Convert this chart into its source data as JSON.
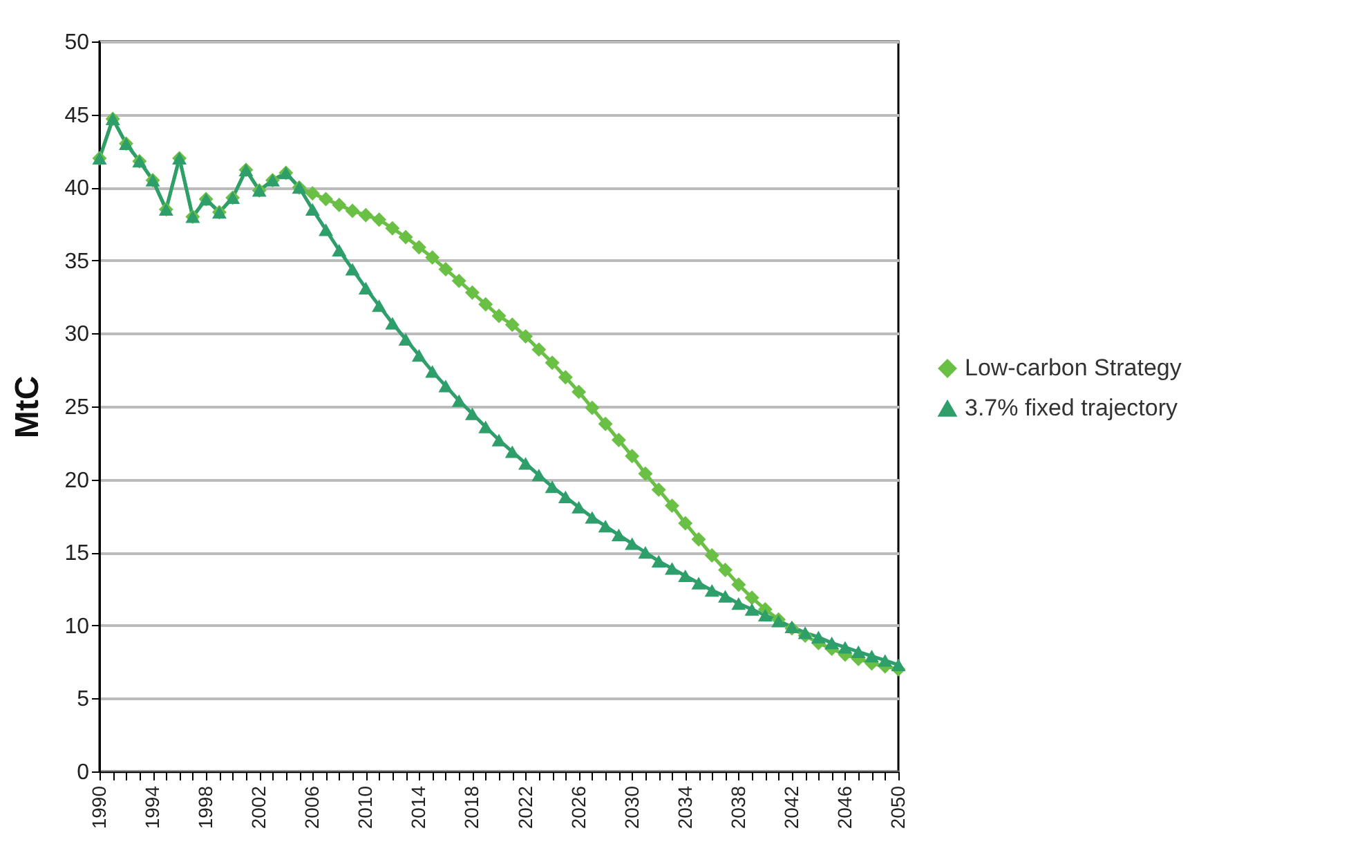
{
  "chart_data": {
    "type": "line",
    "ylabel": "MtC",
    "xlim": [
      1990,
      2050
    ],
    "ylim": [
      0,
      50
    ],
    "yticks": [
      0,
      5,
      10,
      15,
      20,
      25,
      30,
      35,
      40,
      45,
      50
    ],
    "xticks": [
      1990,
      {
        "value": 1991,
        "label": null
      },
      {
        "value": 1992,
        "label": null
      },
      {
        "value": 1993,
        "label": null
      },
      1994,
      {
        "value": 1995,
        "label": null
      },
      {
        "value": 1996,
        "label": null
      },
      {
        "value": 1997,
        "label": null
      },
      1998,
      {
        "value": 1999,
        "label": null
      },
      {
        "value": 2000,
        "label": null
      },
      {
        "value": 2001,
        "label": null
      },
      2002,
      {
        "value": 2003,
        "label": null
      },
      {
        "value": 2004,
        "label": null
      },
      {
        "value": 2005,
        "label": null
      },
      2006,
      {
        "value": 2007,
        "label": null
      },
      {
        "value": 2008,
        "label": null
      },
      {
        "value": 2009,
        "label": null
      },
      2010,
      {
        "value": 2011,
        "label": null
      },
      {
        "value": 2012,
        "label": null
      },
      {
        "value": 2013,
        "label": null
      },
      2014,
      {
        "value": 2015,
        "label": null
      },
      {
        "value": 2016,
        "label": null
      },
      {
        "value": 2017,
        "label": null
      },
      2018,
      {
        "value": 2019,
        "label": null
      },
      {
        "value": 2020,
        "label": null
      },
      {
        "value": 2021,
        "label": null
      },
      2022,
      {
        "value": 2023,
        "label": null
      },
      {
        "value": 2024,
        "label": null
      },
      {
        "value": 2025,
        "label": null
      },
      2026,
      {
        "value": 2027,
        "label": null
      },
      {
        "value": 2028,
        "label": null
      },
      {
        "value": 2029,
        "label": null
      },
      2030,
      {
        "value": 2031,
        "label": null
      },
      {
        "value": 2032,
        "label": null
      },
      {
        "value": 2033,
        "label": null
      },
      2034,
      {
        "value": 2035,
        "label": null
      },
      {
        "value": 2036,
        "label": null
      },
      {
        "value": 2037,
        "label": null
      },
      2038,
      {
        "value": 2039,
        "label": null
      },
      {
        "value": 2040,
        "label": null
      },
      {
        "value": 2041,
        "label": null
      },
      2042,
      {
        "value": 2043,
        "label": null
      },
      {
        "value": 2044,
        "label": null
      },
      {
        "value": 2045,
        "label": null
      },
      2046,
      {
        "value": 2047,
        "label": null
      },
      {
        "value": 2048,
        "label": null
      },
      {
        "value": 2049,
        "label": null
      },
      2050
    ],
    "x": [
      1990,
      1991,
      1992,
      1993,
      1994,
      1995,
      1996,
      1997,
      1998,
      1999,
      2000,
      2001,
      2002,
      2003,
      2004,
      2005,
      2006,
      2007,
      2008,
      2009,
      2010,
      2011,
      2012,
      2013,
      2014,
      2015,
      2016,
      2017,
      2018,
      2019,
      2020,
      2021,
      2022,
      2023,
      2024,
      2025,
      2026,
      2027,
      2028,
      2029,
      2030,
      2031,
      2032,
      2033,
      2034,
      2035,
      2036,
      2037,
      2038,
      2039,
      2040,
      2041,
      2042,
      2043,
      2044,
      2045,
      2046,
      2047,
      2048,
      2049,
      2050
    ],
    "grid": "y",
    "legend": "right",
    "line_style": "solid",
    "series": [
      {
        "name": "Low-carbon Strategy",
        "color": "#6abf45",
        "marker": "diamond",
        "values": [
          42,
          44.7,
          43,
          41.8,
          40.5,
          38.5,
          42,
          38,
          39.2,
          38.3,
          39.3,
          41.2,
          39.8,
          40.5,
          41,
          40,
          39.6,
          39.2,
          38.8,
          38.4,
          38.1,
          37.8,
          37.2,
          36.6,
          35.9,
          35.2,
          34.4,
          33.6,
          32.8,
          32.0,
          31.2,
          30.6,
          29.8,
          28.9,
          28.0,
          27.0,
          26.0,
          24.9,
          23.8,
          22.7,
          21.6,
          20.4,
          19.3,
          18.2,
          17.0,
          15.9,
          14.8,
          13.8,
          12.8,
          11.9,
          11.1,
          10.4,
          9.8,
          9.3,
          8.8,
          8.4,
          8.0,
          7.7,
          7.4,
          7.2,
          7.0
        ]
      },
      {
        "name": "3.7% fixed trajectory",
        "color": "#2e9e6b",
        "marker": "triangle",
        "values": [
          42,
          44.7,
          43,
          41.8,
          40.5,
          38.5,
          42,
          38,
          39.2,
          38.3,
          39.3,
          41.2,
          39.8,
          40.5,
          41,
          40,
          38.5,
          37.1,
          35.7,
          34.4,
          33.1,
          31.9,
          30.7,
          29.6,
          28.5,
          27.4,
          26.4,
          25.4,
          24.5,
          23.6,
          22.7,
          21.9,
          21.1,
          20.3,
          19.5,
          18.8,
          18.1,
          17.4,
          16.8,
          16.2,
          15.6,
          15.0,
          14.4,
          13.9,
          13.4,
          12.9,
          12.4,
          12.0,
          11.5,
          11.1,
          10.7,
          10.3,
          9.9,
          9.5,
          9.2,
          8.8,
          8.5,
          8.2,
          7.9,
          7.6,
          7.3
        ]
      }
    ]
  }
}
